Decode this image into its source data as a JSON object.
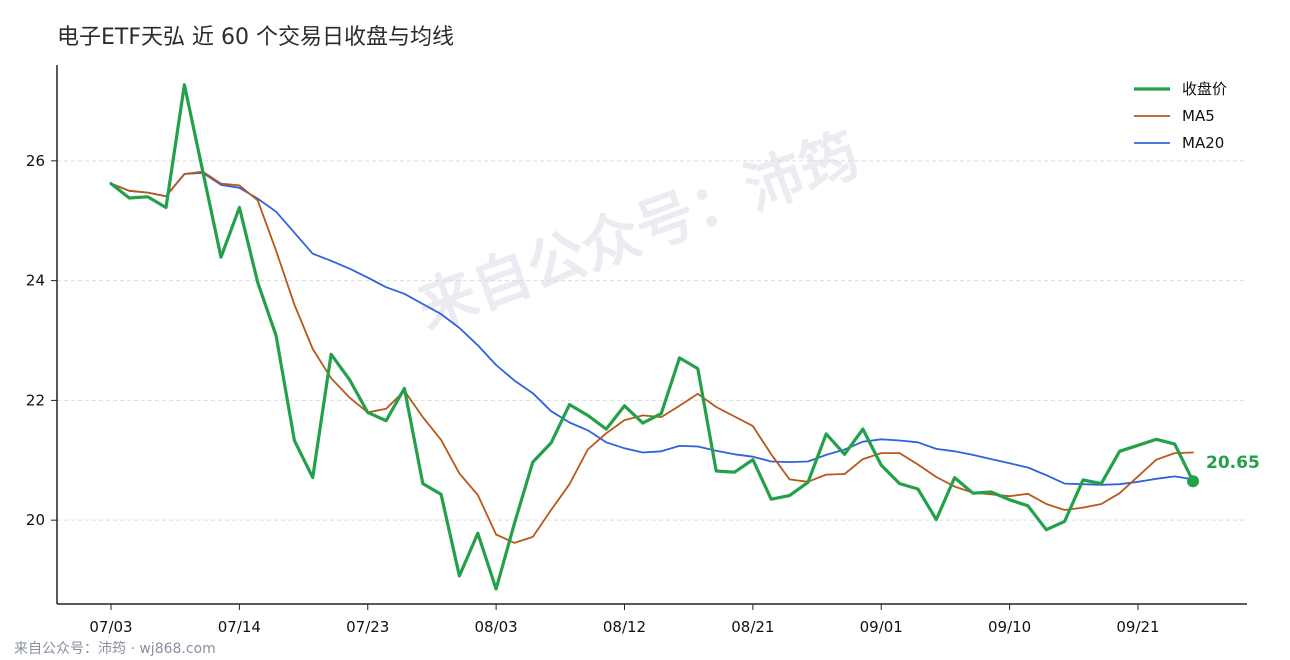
{
  "chart_data": {
    "type": "line",
    "title": "电子ETF天弘 近 60 个交易日收盘与均线",
    "x_tick_labels": [
      "07/03",
      "07/14",
      "07/23",
      "08/03",
      "08/12",
      "08/21",
      "09/01",
      "09/10",
      "09/21"
    ],
    "x_tick_indices": [
      0,
      7,
      14,
      21,
      28,
      35,
      42,
      49,
      56
    ],
    "y_ticks": [
      20,
      22,
      24,
      26
    ],
    "ylim": [
      18.6,
      27.6
    ],
    "grid": true,
    "legend_position": "top-right",
    "series": [
      {
        "name": "收盘价",
        "color": "#22a14a",
        "values": [
          25.62,
          25.38,
          25.4,
          25.22,
          27.27,
          25.83,
          24.39,
          25.22,
          23.97,
          23.08,
          21.33,
          20.71,
          22.77,
          22.35,
          21.8,
          21.66,
          22.2,
          20.61,
          20.43,
          19.07,
          19.78,
          18.85,
          19.95,
          20.97,
          21.29,
          21.93,
          21.75,
          21.52,
          21.91,
          21.62,
          21.78,
          22.71,
          22.53,
          20.82,
          20.8,
          21.01,
          20.35,
          20.41,
          20.63,
          21.44,
          21.1,
          21.52,
          20.92,
          20.61,
          20.52,
          20.01,
          20.71,
          20.45,
          20.47,
          20.34,
          20.24,
          19.84,
          19.98,
          20.67,
          20.61,
          21.15,
          21.25,
          21.35,
          21.27,
          20.65
        ]
      },
      {
        "name": "MA5",
        "color": "#b8581a",
        "values": [
          25.62,
          25.5,
          25.47,
          25.41,
          25.78,
          25.82,
          25.62,
          25.59,
          25.34,
          24.5,
          23.6,
          22.86,
          22.37,
          22.05,
          21.8,
          21.86,
          22.16,
          21.72,
          21.34,
          20.78,
          20.42,
          19.76,
          19.62,
          19.72,
          20.17,
          20.6,
          21.18,
          21.45,
          21.67,
          21.75,
          21.72,
          21.91,
          22.11,
          21.89,
          21.73,
          21.57,
          21.1,
          20.68,
          20.64,
          20.76,
          20.77,
          21.02,
          21.12,
          21.12,
          20.93,
          20.72,
          20.56,
          20.46,
          20.43,
          20.4,
          20.44,
          20.27,
          20.17,
          20.21,
          20.27,
          20.45,
          20.73,
          21.01,
          21.12,
          21.13
        ]
      },
      {
        "name": "MA20",
        "color": "#2f62dc",
        "values": [
          25.62,
          25.5,
          25.47,
          25.41,
          25.78,
          25.8,
          25.6,
          25.55,
          25.37,
          25.15,
          24.8,
          24.45,
          24.33,
          24.2,
          24.05,
          23.89,
          23.78,
          23.61,
          23.44,
          23.21,
          22.92,
          22.59,
          22.33,
          22.12,
          21.82,
          21.63,
          21.5,
          21.3,
          21.2,
          21.13,
          21.15,
          21.24,
          21.23,
          21.16,
          21.1,
          21.06,
          20.98,
          20.97,
          20.98,
          21.09,
          21.18,
          21.31,
          21.35,
          21.33,
          21.3,
          21.19,
          21.15,
          21.09,
          21.02,
          20.95,
          20.88,
          20.75,
          20.61,
          20.6,
          20.59,
          20.6,
          20.64,
          20.69,
          20.73,
          20.68
        ]
      }
    ],
    "last_close_label": "20.65"
  },
  "watermark": "来自公众号：沛筠",
  "footer": "来自公众号：沛筠 · wj868.com"
}
